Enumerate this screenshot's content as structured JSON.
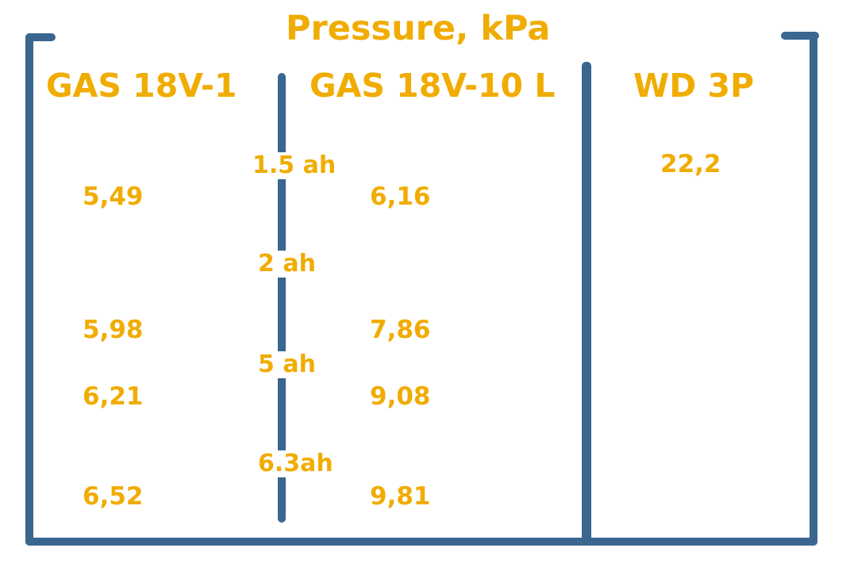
{
  "title": "Pressure, kPa",
  "columns": [
    {
      "header": "GAS 18V-1",
      "values": [
        "5,49",
        "5,98",
        "6,21",
        "6,52"
      ]
    },
    {
      "header": "GAS 18V-10 L",
      "values": [
        "6,16",
        "7,86",
        "9,08",
        "9,81"
      ]
    },
    {
      "header": "WD 3P",
      "values": [
        "22,2"
      ]
    }
  ],
  "battery_capacities": [
    "1.5 ah",
    "2 ah",
    "5 ah",
    "6.3ah"
  ],
  "colors": {
    "text": "#f0ac00",
    "frame": "#3a6690",
    "background": "#ffffff"
  }
}
